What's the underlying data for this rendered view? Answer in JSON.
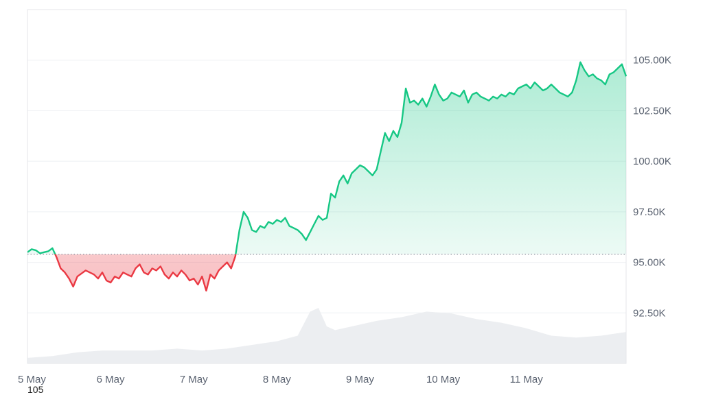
{
  "chart_data": {
    "type": "area",
    "title": "",
    "xlabel": "",
    "ylabel": "",
    "x_ticks": [
      "5 May",
      "6 May",
      "7 May",
      "8 May",
      "9 May",
      "10 May",
      "11 May"
    ],
    "y_ticks": [
      "92.50K",
      "95.00K",
      "97.50K",
      "100.00K",
      "102.50K",
      "105.00K"
    ],
    "y_tick_values": [
      92500,
      95000,
      97500,
      100000,
      102500,
      105000
    ],
    "ylim": [
      90000,
      107500
    ],
    "xlim": [
      0,
      7.2
    ],
    "baseline": 95400,
    "grid": true,
    "colors": {
      "above": "#16c784",
      "below": "#ea3943",
      "volume": "#eceef1",
      "grid": "#eef0f3",
      "baseline": "#8a919e"
    },
    "series": [
      {
        "x": [
          0,
          0.05,
          0.1,
          0.15,
          0.2,
          0.25,
          0.3,
          0.35,
          0.4,
          0.45,
          0.5,
          0.55,
          0.6,
          0.65,
          0.7,
          0.75,
          0.8,
          0.85,
          0.9,
          0.95,
          1.0,
          1.05,
          1.1,
          1.15,
          1.2,
          1.25,
          1.3,
          1.35,
          1.4,
          1.45,
          1.5,
          1.55,
          1.6,
          1.65,
          1.7,
          1.75,
          1.8,
          1.85,
          1.9,
          1.95,
          2.0,
          2.05,
          2.1,
          2.15,
          2.2,
          2.25,
          2.3,
          2.35,
          2.4,
          2.45,
          2.5,
          2.55,
          2.6,
          2.65,
          2.7,
          2.75,
          2.8,
          2.85,
          2.9,
          2.95,
          3.0,
          3.05,
          3.1,
          3.15,
          3.2,
          3.25,
          3.3,
          3.35,
          3.4,
          3.45,
          3.5,
          3.55,
          3.6,
          3.65,
          3.7,
          3.75,
          3.8,
          3.85,
          3.9,
          3.95,
          4.0,
          4.05,
          4.1,
          4.15,
          4.2,
          4.25,
          4.3,
          4.35,
          4.4,
          4.45,
          4.5,
          4.55,
          4.6,
          4.65,
          4.7,
          4.75,
          4.8,
          4.85,
          4.9,
          4.95,
          5.0,
          5.05,
          5.1,
          5.15,
          5.2,
          5.25,
          5.3,
          5.35,
          5.4,
          5.45,
          5.5,
          5.55,
          5.6,
          5.65,
          5.7,
          5.75,
          5.8,
          5.85,
          5.9,
          5.95,
          6.0,
          6.05,
          6.1,
          6.15,
          6.2,
          6.25,
          6.3,
          6.35,
          6.4,
          6.45,
          6.5,
          6.55,
          6.6,
          6.65,
          6.7,
          6.75,
          6.8,
          6.85,
          6.9,
          6.95,
          7.0,
          7.05,
          7.1,
          7.15,
          7.2
        ],
        "y": [
          95500,
          95650,
          95600,
          95450,
          95500,
          95550,
          95700,
          95250,
          94700,
          94500,
          94200,
          93800,
          94300,
          94450,
          94600,
          94500,
          94400,
          94200,
          94500,
          94100,
          94000,
          94300,
          94200,
          94500,
          94400,
          94300,
          94700,
          94900,
          94500,
          94400,
          94700,
          94600,
          94800,
          94400,
          94200,
          94500,
          94300,
          94600,
          94400,
          94100,
          94200,
          93900,
          94300,
          93600,
          94400,
          94200,
          94600,
          94800,
          95000,
          94700,
          95300,
          96600,
          97500,
          97200,
          96600,
          96500,
          96800,
          96700,
          97000,
          96900,
          97100,
          97000,
          97200,
          96800,
          96700,
          96600,
          96400,
          96100,
          96500,
          96900,
          97300,
          97100,
          97200,
          98400,
          98200,
          99000,
          99300,
          98900,
          99400,
          99600,
          99800,
          99700,
          99500,
          99300,
          99600,
          100500,
          101400,
          101000,
          101500,
          101200,
          101900,
          103600,
          102900,
          103000,
          102800,
          103100,
          102700,
          103200,
          103800,
          103300,
          103000,
          103100,
          103400,
          103300,
          103200,
          103500,
          102900,
          103300,
          103400,
          103200,
          103100,
          103000,
          103200,
          103100,
          103300,
          103200,
          103400,
          103300,
          103600,
          103700,
          103800,
          103600,
          103900,
          103700,
          103500,
          103600,
          103800,
          103600,
          103400,
          103300,
          103200,
          103400,
          104000,
          104900,
          104500,
          104200,
          104300,
          104100,
          104000,
          103800,
          104300,
          104400,
          104600,
          104800,
          104200
        ]
      }
    ],
    "volume": {
      "x": [
        0,
        0.3,
        0.6,
        0.9,
        1.2,
        1.5,
        1.8,
        2.1,
        2.4,
        2.7,
        3.0,
        3.25,
        3.4,
        3.5,
        3.6,
        3.7,
        3.9,
        4.2,
        4.5,
        4.8,
        5.1,
        5.4,
        5.7,
        6.0,
        6.3,
        6.6,
        6.9,
        7.2
      ],
      "y": [
        3,
        4,
        6,
        7,
        7,
        7,
        8,
        7,
        8,
        10,
        12,
        15,
        28,
        30,
        20,
        18,
        20,
        23,
        25,
        28,
        27,
        24,
        22,
        19,
        15,
        14,
        15,
        17
      ]
    }
  },
  "bottom_left_label": "105"
}
